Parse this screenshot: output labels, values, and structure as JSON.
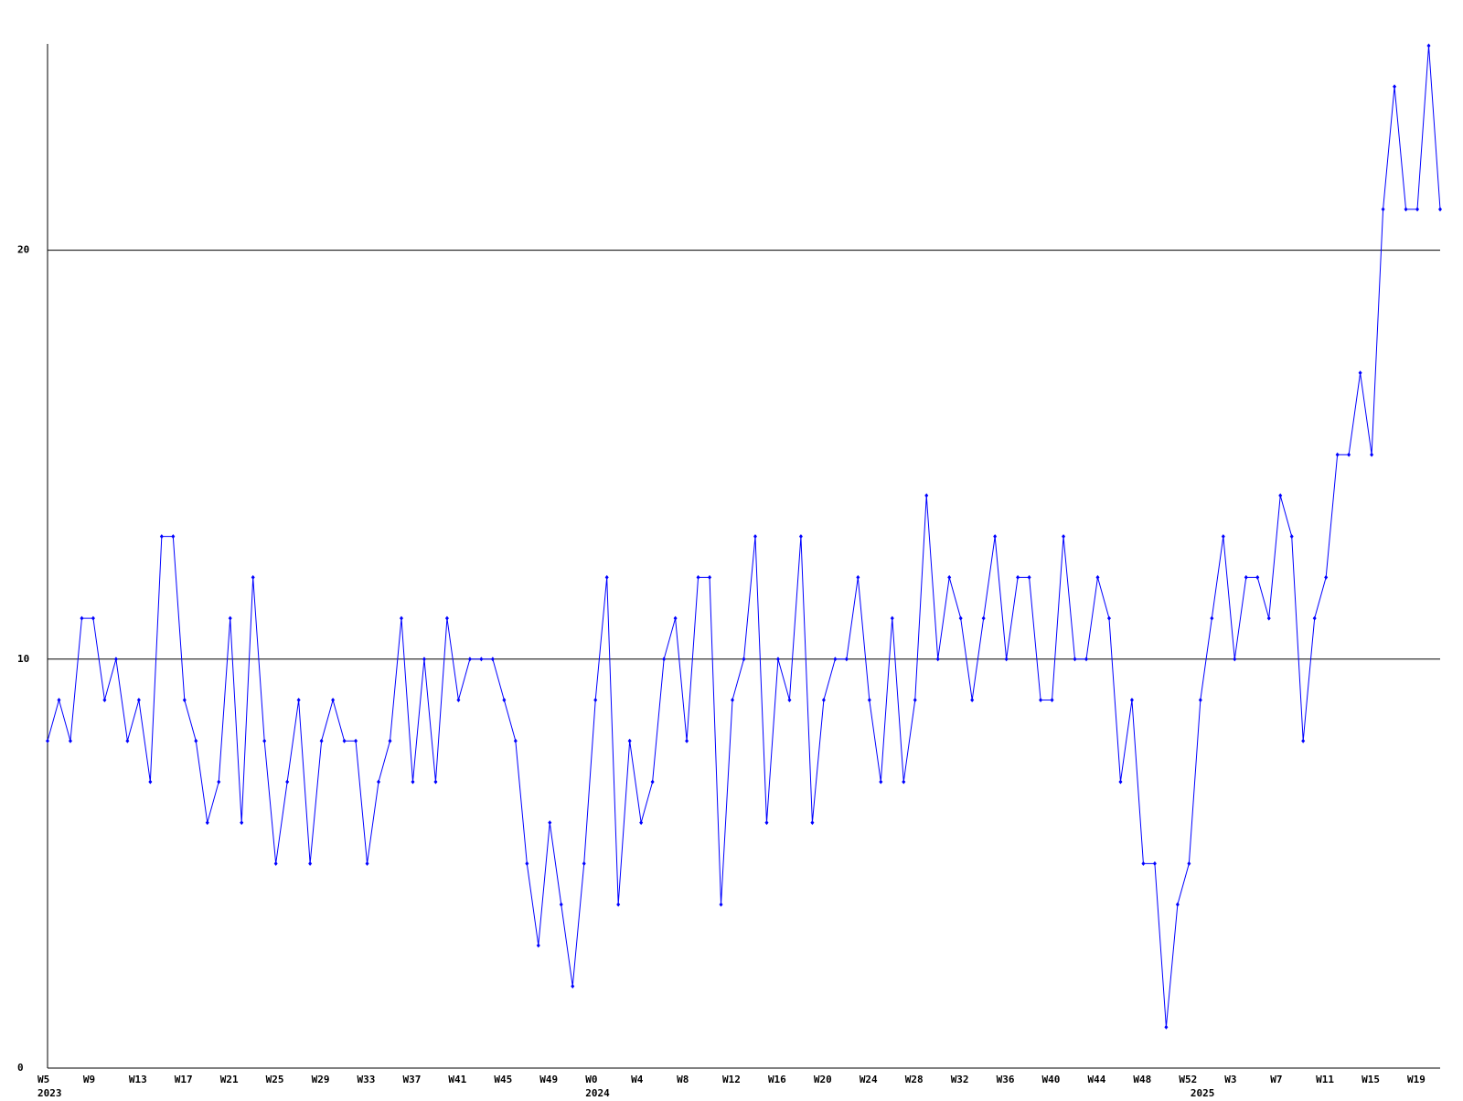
{
  "chart_data": {
    "type": "line",
    "categories": [
      "W5",
      null,
      null,
      null,
      "W9",
      null,
      null,
      null,
      "W13",
      null,
      null,
      null,
      "W17",
      null,
      null,
      null,
      "W21",
      null,
      null,
      null,
      "W25",
      null,
      null,
      null,
      "W29",
      null,
      null,
      null,
      "W33",
      null,
      null,
      null,
      "W37",
      null,
      null,
      null,
      "W41",
      null,
      null,
      null,
      "W45",
      null,
      null,
      null,
      "W49",
      null,
      null,
      null,
      "W0",
      null,
      null,
      null,
      "W4",
      null,
      null,
      null,
      "W8",
      null,
      null,
      null,
      "W12",
      null,
      null,
      null,
      "W16",
      null,
      null,
      null,
      "W20",
      null,
      null,
      null,
      "W24",
      null,
      null,
      null,
      "W28",
      null,
      null,
      null,
      "W32",
      null,
      null,
      null,
      "W36",
      null,
      null,
      null,
      "W40",
      null,
      null,
      null,
      "W44",
      null,
      null,
      null,
      "W48",
      null,
      null,
      null,
      "W52",
      null,
      null,
      null,
      "W3",
      null,
      null,
      null,
      "W7",
      null,
      null,
      null,
      "W11",
      null,
      null,
      null,
      "W15",
      null,
      null,
      null,
      "W19",
      null,
      null
    ],
    "year_labels": [
      "2023",
      null,
      null,
      null,
      null,
      null,
      null,
      null,
      null,
      null,
      null,
      null,
      null,
      null,
      null,
      null,
      null,
      null,
      null,
      null,
      null,
      null,
      null,
      null,
      null,
      null,
      null,
      null,
      null,
      null,
      null,
      null,
      null,
      null,
      null,
      null,
      null,
      null,
      null,
      null,
      null,
      null,
      null,
      null,
      null,
      null,
      null,
      null,
      "2024",
      null,
      null,
      null,
      null,
      null,
      null,
      null,
      null,
      null,
      null,
      null,
      null,
      null,
      null,
      null,
      null,
      null,
      null,
      null,
      null,
      null,
      null,
      null,
      null,
      null,
      null,
      null,
      null,
      null,
      null,
      null,
      null,
      null,
      null,
      null,
      null,
      null,
      null,
      null,
      null,
      null,
      null,
      null,
      null,
      null,
      null,
      null,
      null,
      null,
      null,
      null,
      null,
      "2025",
      null,
      null,
      null,
      null,
      null,
      null,
      null,
      null,
      null,
      null,
      null,
      null,
      null,
      null,
      null,
      null,
      null,
      null,
      null,
      null,
      null
    ],
    "series": [
      {
        "color": "#0000ff",
        "values": [
          8,
          9,
          8,
          11,
          11,
          9,
          10,
          8,
          9,
          7,
          13,
          13,
          9,
          8,
          6,
          7,
          11,
          6,
          12,
          8,
          5,
          7,
          9,
          5,
          8,
          9,
          8,
          8,
          5,
          7,
          8,
          11,
          7,
          10,
          7,
          11,
          9,
          10,
          10,
          10,
          9,
          8,
          5,
          3,
          6,
          4,
          2,
          5,
          9,
          12,
          4,
          8,
          6,
          7,
          10,
          11,
          8,
          12,
          12,
          4,
          9,
          10,
          13,
          6,
          10,
          9,
          13,
          6,
          9,
          10,
          10,
          12,
          9,
          7,
          11,
          7,
          9,
          14,
          10,
          12,
          11,
          9,
          11,
          13,
          10,
          12,
          12,
          9,
          9,
          13,
          10,
          10,
          12,
          11,
          7,
          9,
          5,
          5,
          1,
          4,
          5,
          9,
          11,
          13,
          10,
          12,
          12,
          11,
          14,
          13,
          8,
          11,
          12,
          15,
          15,
          17,
          15,
          21,
          24,
          21,
          21,
          25,
          21
        ]
      }
    ],
    "ylim": [
      0,
      25
    ],
    "yticks": [
      0,
      10,
      20
    ],
    "grid": true
  }
}
